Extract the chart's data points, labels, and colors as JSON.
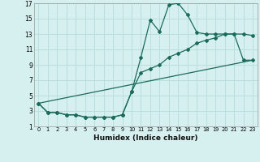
{
  "xlabel": "Humidex (Indice chaleur)",
  "bg_color": "#d6f0f0",
  "grid_color": "#b8dede",
  "line_color": "#1a6b5a",
  "xlim": [
    -0.5,
    23.5
  ],
  "ylim": [
    1,
    17
  ],
  "xticks": [
    0,
    1,
    2,
    3,
    4,
    5,
    6,
    7,
    8,
    9,
    10,
    11,
    12,
    13,
    14,
    15,
    16,
    17,
    18,
    19,
    20,
    21,
    22,
    23
  ],
  "yticks": [
    1,
    3,
    5,
    7,
    9,
    11,
    13,
    15,
    17
  ],
  "line1_x": [
    0,
    1,
    2,
    3,
    4,
    5,
    6,
    7,
    8,
    9,
    10,
    11,
    12,
    13,
    14,
    15,
    16,
    17,
    18,
    19,
    20,
    21,
    22,
    23
  ],
  "line1_y": [
    4.0,
    2.8,
    2.8,
    2.5,
    2.5,
    2.2,
    2.2,
    2.2,
    2.2,
    2.5,
    5.5,
    10.0,
    14.8,
    13.3,
    16.8,
    17.0,
    15.5,
    13.2,
    13.0,
    13.0,
    13.0,
    13.0,
    13.0,
    12.8
  ],
  "line2_x": [
    0,
    1,
    2,
    3,
    4,
    5,
    6,
    7,
    8,
    9,
    10,
    11,
    12,
    13,
    14,
    15,
    16,
    17,
    18,
    19,
    20,
    21,
    22,
    23
  ],
  "line2_y": [
    4.0,
    2.8,
    2.8,
    2.5,
    2.5,
    2.2,
    2.2,
    2.2,
    2.2,
    2.5,
    5.5,
    8.0,
    8.5,
    9.0,
    10.0,
    10.5,
    11.0,
    11.8,
    12.2,
    12.5,
    13.0,
    13.0,
    9.6,
    9.6
  ],
  "line3_x": [
    0,
    23
  ],
  "line3_y": [
    4.0,
    9.6
  ]
}
